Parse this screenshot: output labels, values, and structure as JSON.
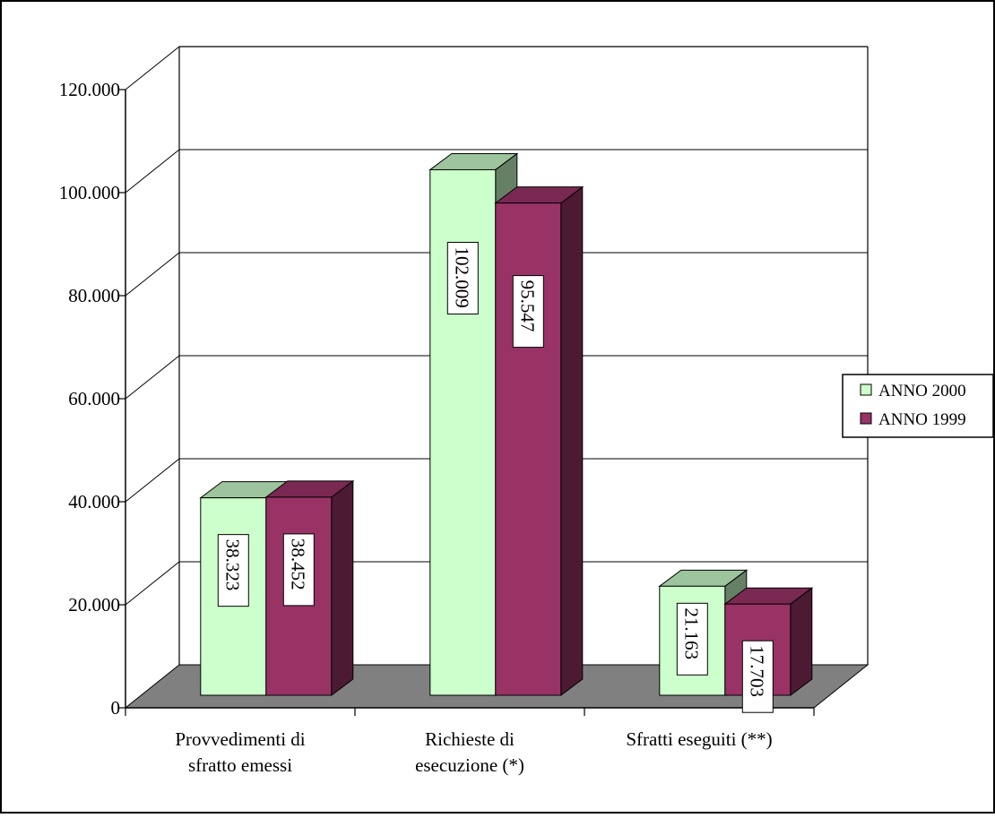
{
  "colors": {
    "anno2000_front": "#CCFFCC",
    "anno2000_top": "#9DC49D",
    "anno2000_side": "#668066",
    "anno1999_front": "#993366",
    "anno1999_top": "#7A2952",
    "anno1999_side": "#4D1A33",
    "floor": "#808080",
    "grid": "#000000"
  },
  "chart_data": {
    "type": "bar",
    "categories": [
      [
        "Provvedimenti di",
        "sfratto emessi"
      ],
      [
        "Richieste di",
        "esecuzione (*)"
      ],
      [
        "Sfratti eseguiti (**)"
      ]
    ],
    "series": [
      {
        "name": "ANNO 2000",
        "values": [
          38323,
          102009,
          21163
        ],
        "labels": [
          "38.323",
          "102.009",
          "21.163"
        ]
      },
      {
        "name": "ANNO 1999",
        "values": [
          38452,
          95547,
          17703
        ],
        "labels": [
          "38.452",
          "95.547",
          "17.703"
        ]
      }
    ],
    "yticks": [
      "0",
      "20.000",
      "40.000",
      "60.000",
      "80.000",
      "100.000",
      "120.000"
    ],
    "ylim": [
      0,
      120000
    ],
    "grid": true,
    "legend": "right"
  }
}
